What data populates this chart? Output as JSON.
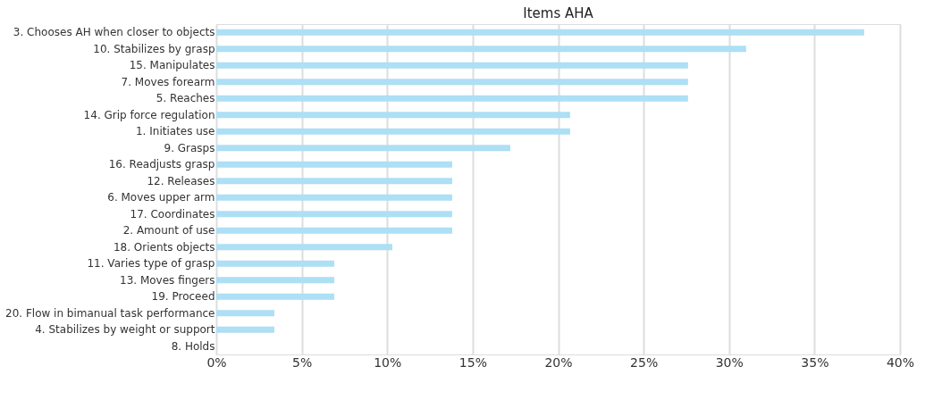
{
  "chart_data": {
    "type": "bar",
    "orientation": "horizontal",
    "title": "Items AHA",
    "categories": [
      "3. Chooses AH when closer to objects",
      "10. Stabilizes by grasp",
      "15. Manipulates",
      "7. Moves forearm",
      "5. Reaches",
      "14. Grip force regulation",
      "1. Initiates use",
      "9. Grasps",
      "16. Readjusts grasp",
      "12. Releases",
      "6. Moves upper arm",
      "17. Coordinates",
      "2. Amount of use",
      "18. Orients objects",
      "11. Varies type of grasp",
      "13. Moves fingers",
      "19. Proceed",
      "20. Flow in bimanual task performance",
      "4. Stabilizes by weight or support",
      "8. Holds"
    ],
    "values": [
      37.9,
      31.0,
      27.6,
      27.6,
      27.6,
      20.7,
      20.7,
      17.2,
      13.8,
      13.8,
      13.8,
      13.8,
      13.8,
      10.3,
      6.9,
      6.9,
      6.9,
      3.4,
      3.4,
      0
    ],
    "color": "#addff5",
    "xlim": [
      0,
      40
    ],
    "xticks": [
      {
        "value": 0,
        "label": "0%"
      },
      {
        "value": 5,
        "label": "5%"
      },
      {
        "value": 10,
        "label": "10%"
      },
      {
        "value": 15,
        "label": "15%"
      },
      {
        "value": 20,
        "label": "20%"
      },
      {
        "value": 25,
        "label": "25%"
      },
      {
        "value": 30,
        "label": "30%"
      },
      {
        "value": 35,
        "label": "35%"
      },
      {
        "value": 40,
        "label": "40%"
      }
    ],
    "grid": "x"
  }
}
